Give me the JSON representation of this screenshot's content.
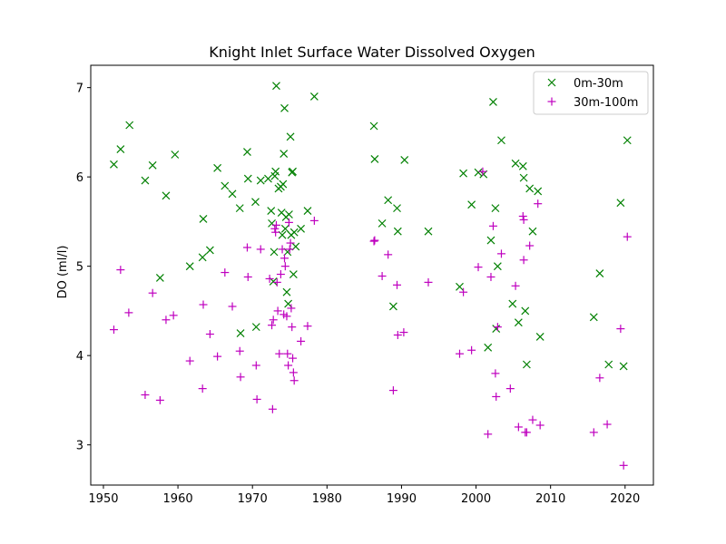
{
  "chart_data": {
    "type": "scatter",
    "title": "Knight Inlet Surface Water Dissolved Oxygen",
    "xlabel": "",
    "ylabel": "DO (ml/l)",
    "xlim": [
      1948.3,
      2023.8
    ],
    "ylim": [
      2.55,
      7.25
    ],
    "xticks": [
      1950,
      1960,
      1970,
      1980,
      1990,
      2000,
      2010,
      2020
    ],
    "yticks": [
      3,
      4,
      5,
      6,
      7
    ],
    "grid": false,
    "legend_position": "upper right",
    "series": [
      {
        "name": "0m-30m",
        "marker": "x",
        "color": "#008000",
        "points": [
          [
            1951.4,
            6.14
          ],
          [
            1952.3,
            6.31
          ],
          [
            1953.5,
            6.58
          ],
          [
            1955.6,
            5.96
          ],
          [
            1956.6,
            6.13
          ],
          [
            1957.6,
            4.87
          ],
          [
            1958.4,
            5.79
          ],
          [
            1959.6,
            6.25
          ],
          [
            1961.6,
            5.0
          ],
          [
            1963.3,
            5.1
          ],
          [
            1963.4,
            5.53
          ],
          [
            1964.3,
            5.18
          ],
          [
            1965.3,
            6.1
          ],
          [
            1966.3,
            5.9
          ],
          [
            1967.3,
            5.81
          ],
          [
            1968.3,
            5.65
          ],
          [
            1968.4,
            4.25
          ],
          [
            1969.3,
            6.28
          ],
          [
            1969.4,
            5.98
          ],
          [
            1970.4,
            5.72
          ],
          [
            1970.5,
            4.32
          ],
          [
            1971.1,
            5.96
          ],
          [
            1972.1,
            5.98
          ],
          [
            1972.5,
            5.62
          ],
          [
            1972.6,
            5.48
          ],
          [
            1972.8,
            4.83
          ],
          [
            1972.9,
            5.16
          ],
          [
            1973.0,
            6.01
          ],
          [
            1973.1,
            6.06
          ],
          [
            1973.2,
            7.02
          ],
          [
            1973.5,
            5.87
          ],
          [
            1973.8,
            5.89
          ],
          [
            1973.9,
            5.6
          ],
          [
            1974.0,
            5.35
          ],
          [
            1974.1,
            5.92
          ],
          [
            1974.2,
            6.26
          ],
          [
            1974.3,
            6.77
          ],
          [
            1974.4,
            5.42
          ],
          [
            1974.5,
            5.55
          ],
          [
            1974.6,
            4.71
          ],
          [
            1974.7,
            5.16
          ],
          [
            1974.9,
            5.58
          ],
          [
            1975.1,
            6.45
          ],
          [
            1975.2,
            5.35
          ],
          [
            1975.3,
            6.05
          ],
          [
            1975.4,
            6.06
          ],
          [
            1975.5,
            4.91
          ],
          [
            1975.6,
            5.38
          ],
          [
            1975.8,
            5.22
          ],
          [
            1974.8,
            4.58
          ],
          [
            1976.5,
            5.42
          ],
          [
            1977.4,
            5.62
          ],
          [
            1978.3,
            6.9
          ],
          [
            1986.3,
            6.57
          ],
          [
            1986.4,
            6.2
          ],
          [
            1987.4,
            5.48
          ],
          [
            1988.2,
            5.74
          ],
          [
            1988.9,
            4.55
          ],
          [
            1989.4,
            5.65
          ],
          [
            1989.5,
            5.39
          ],
          [
            1990.4,
            6.19
          ],
          [
            1993.6,
            5.39
          ],
          [
            1997.8,
            4.77
          ],
          [
            1998.3,
            6.04
          ],
          [
            1999.4,
            5.69
          ],
          [
            2000.3,
            6.05
          ],
          [
            2001.0,
            6.03
          ],
          [
            2001.6,
            4.09
          ],
          [
            2002.0,
            5.29
          ],
          [
            2002.3,
            6.84
          ],
          [
            2002.6,
            5.65
          ],
          [
            2002.7,
            4.3
          ],
          [
            2002.9,
            5.0
          ],
          [
            2003.4,
            6.41
          ],
          [
            2004.9,
            4.58
          ],
          [
            2005.3,
            6.15
          ],
          [
            2005.7,
            4.37
          ],
          [
            2006.3,
            6.12
          ],
          [
            2006.4,
            5.99
          ],
          [
            2006.6,
            4.5
          ],
          [
            2006.8,
            3.9
          ],
          [
            2007.2,
            5.87
          ],
          [
            2007.6,
            5.39
          ],
          [
            2008.3,
            5.84
          ],
          [
            2008.6,
            4.21
          ],
          [
            2015.8,
            4.43
          ],
          [
            2016.6,
            4.92
          ],
          [
            2017.8,
            3.9
          ],
          [
            2019.4,
            5.71
          ],
          [
            2019.8,
            3.88
          ],
          [
            2020.3,
            6.41
          ]
        ]
      },
      {
        "name": "30m-100m",
        "marker": "+",
        "color": "#bf00bf",
        "points": [
          [
            1951.4,
            4.29
          ],
          [
            1952.3,
            4.96
          ],
          [
            1953.4,
            4.48
          ],
          [
            1955.6,
            3.56
          ],
          [
            1956.6,
            4.7
          ],
          [
            1957.6,
            3.5
          ],
          [
            1958.4,
            4.4
          ],
          [
            1959.4,
            4.45
          ],
          [
            1961.6,
            3.94
          ],
          [
            1963.3,
            3.63
          ],
          [
            1963.4,
            4.57
          ],
          [
            1964.3,
            4.24
          ],
          [
            1965.3,
            3.99
          ],
          [
            1966.3,
            4.93
          ],
          [
            1967.3,
            4.55
          ],
          [
            1968.3,
            4.05
          ],
          [
            1968.4,
            3.76
          ],
          [
            1969.3,
            5.21
          ],
          [
            1969.4,
            4.88
          ],
          [
            1970.5,
            3.89
          ],
          [
            1970.6,
            3.51
          ],
          [
            1971.1,
            5.19
          ],
          [
            1972.3,
            4.86
          ],
          [
            1972.6,
            4.34
          ],
          [
            1972.7,
            3.4
          ],
          [
            1972.8,
            4.4
          ],
          [
            1973.0,
            5.42
          ],
          [
            1973.1,
            5.38
          ],
          [
            1973.2,
            5.46
          ],
          [
            1973.3,
            4.82
          ],
          [
            1973.4,
            4.5
          ],
          [
            1973.6,
            4.02
          ],
          [
            1973.8,
            4.91
          ],
          [
            1974.0,
            5.19
          ],
          [
            1974.2,
            4.46
          ],
          [
            1974.3,
            5.09
          ],
          [
            1974.4,
            5.0
          ],
          [
            1974.6,
            4.44
          ],
          [
            1974.7,
            4.02
          ],
          [
            1974.8,
            3.89
          ],
          [
            1974.9,
            5.49
          ],
          [
            1975.0,
            5.19
          ],
          [
            1975.1,
            5.26
          ],
          [
            1975.2,
            4.53
          ],
          [
            1975.3,
            4.32
          ],
          [
            1975.4,
            3.97
          ],
          [
            1975.5,
            3.81
          ],
          [
            1975.6,
            3.72
          ],
          [
            1976.5,
            4.16
          ],
          [
            1977.4,
            4.33
          ],
          [
            1978.3,
            5.51
          ],
          [
            1986.3,
            5.28
          ],
          [
            1986.4,
            5.29
          ],
          [
            1987.4,
            4.89
          ],
          [
            1988.2,
            5.13
          ],
          [
            1988.9,
            3.61
          ],
          [
            1989.4,
            4.79
          ],
          [
            1989.5,
            4.23
          ],
          [
            1990.3,
            4.26
          ],
          [
            1993.6,
            4.82
          ],
          [
            1997.8,
            4.02
          ],
          [
            1998.3,
            4.71
          ],
          [
            1999.4,
            4.06
          ],
          [
            2000.3,
            4.99
          ],
          [
            2000.9,
            6.06
          ],
          [
            2001.6,
            3.12
          ],
          [
            2002.0,
            4.88
          ],
          [
            2002.3,
            5.45
          ],
          [
            2002.6,
            3.8
          ],
          [
            2002.7,
            3.54
          ],
          [
            2002.9,
            4.32
          ],
          [
            2003.4,
            5.14
          ],
          [
            2004.6,
            3.63
          ],
          [
            2005.3,
            4.78
          ],
          [
            2005.7,
            3.2
          ],
          [
            2006.3,
            5.56
          ],
          [
            2006.4,
            5.07
          ],
          [
            2006.6,
            3.14
          ],
          [
            2006.8,
            3.14
          ],
          [
            2007.2,
            5.23
          ],
          [
            2007.6,
            3.28
          ],
          [
            2008.3,
            5.7
          ],
          [
            2008.6,
            3.22
          ],
          [
            2015.8,
            3.14
          ],
          [
            2016.6,
            3.75
          ],
          [
            2017.6,
            3.23
          ],
          [
            2019.4,
            4.3
          ],
          [
            2019.8,
            2.77
          ],
          [
            2020.3,
            5.33
          ],
          [
            2006.4,
            5.52
          ]
        ]
      }
    ]
  }
}
